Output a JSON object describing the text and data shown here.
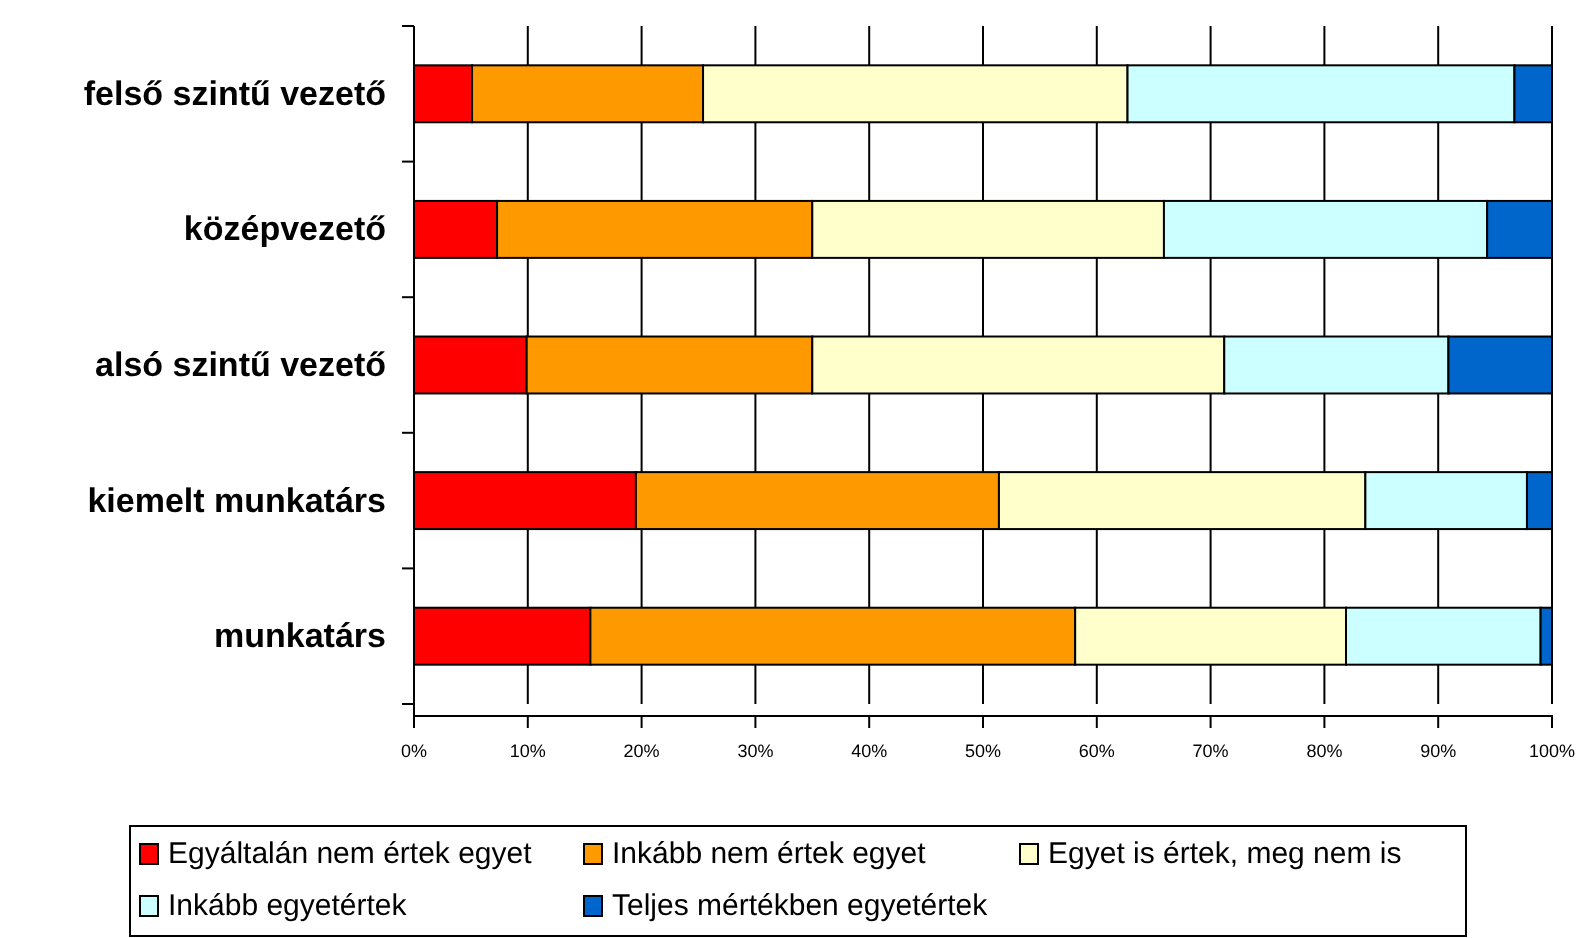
{
  "chart_data": {
    "type": "bar",
    "orientation": "horizontal",
    "stacked": true,
    "categories": [
      "felső szintű vezető",
      "középvezető",
      "alsó szintű vezető",
      "kiemelt munkatárs",
      "munkatárs"
    ],
    "series": [
      {
        "name": "Egyáltalán nem értek egyet",
        "color": "#ff0000",
        "values": [
          5.1,
          7.3,
          9.9,
          19.5,
          15.5
        ]
      },
      {
        "name": "Inkább nem értek egyet",
        "color": "#ff9900",
        "values": [
          20.3,
          27.7,
          25.1,
          31.9,
          42.6
        ]
      },
      {
        "name": "Egyet is értek, meg nem is",
        "color": "#ffffcc",
        "values": [
          37.3,
          30.9,
          36.2,
          32.2,
          23.8
        ]
      },
      {
        "name": "Inkább egyetértek",
        "color": "#ccffff",
        "values": [
          34.0,
          28.4,
          19.7,
          14.2,
          17.1
        ]
      },
      {
        "name": "Teljes mértékben egyetértek",
        "color": "#0066cc",
        "values": [
          3.3,
          5.7,
          9.1,
          2.2,
          1.0
        ]
      }
    ],
    "xlim": [
      0,
      100
    ],
    "xticks": [
      {
        "value": 0,
        "label": "0%"
      },
      {
        "value": 10,
        "label": "10%"
      },
      {
        "value": 20,
        "label": "20%"
      },
      {
        "value": 30,
        "label": "30%"
      },
      {
        "value": 40,
        "label": "40%"
      },
      {
        "value": 50,
        "label": "50%"
      },
      {
        "value": 60,
        "label": "60%"
      },
      {
        "value": 70,
        "label": "70%"
      },
      {
        "value": 80,
        "label": "80%"
      },
      {
        "value": 90,
        "label": "90%"
      },
      {
        "value": 100,
        "label": "100%"
      }
    ],
    "grid": "x",
    "legend": "bottom"
  }
}
